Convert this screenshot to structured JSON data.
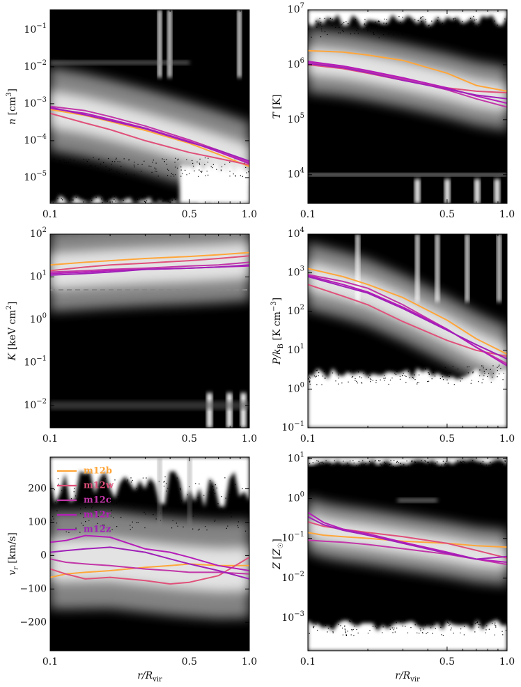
{
  "colors": {
    "m12b": "#ffa63a",
    "m12w": "#e0507a",
    "m12c": "#c236a8",
    "m12r": "#b51db8",
    "m12z": "#a020b8",
    "hist_dark": "#000000",
    "hist_light": "#eeeeee",
    "dashed_line": "#888888"
  },
  "legend": [
    "m12b",
    "m12w",
    "m12c",
    "m12r",
    "m12z"
  ],
  "chart_data": [
    {
      "type": "line",
      "xlabel": "",
      "xscale": "log",
      "xlim": [
        0.1,
        1.0
      ],
      "xticks": [
        "0.1",
        "0.5",
        "1.0"
      ],
      "ylabel": "n [cm3]",
      "yscale": "log",
      "ylim": [
        2e-06,
        0.35
      ],
      "yticks": [
        "10^-5",
        "10^-4",
        "10^-3",
        "10^-2",
        "10^-1"
      ],
      "x": [
        0.1,
        0.15,
        0.2,
        0.3,
        0.5,
        0.7,
        1.0
      ],
      "series": [
        {
          "name": "m12b",
          "values": [
            0.0007,
            0.00048,
            0.00033,
            0.00019,
            8.5e-05,
            4.3e-05,
            2e-05
          ]
        },
        {
          "name": "m12w",
          "values": [
            0.00055,
            0.0003,
            0.0002,
            0.0001,
            4.8e-05,
            3.3e-05,
            2.2e-05
          ]
        },
        {
          "name": "m12c",
          "values": [
            0.00085,
            0.00065,
            0.00045,
            0.00025,
            0.000105,
            5.5e-05,
            2.6e-05
          ]
        },
        {
          "name": "m12r",
          "values": [
            0.00075,
            0.00055,
            0.00038,
            0.00022,
            9.5e-05,
            5e-05,
            2.4e-05
          ]
        },
        {
          "name": "m12z",
          "values": [
            0.0008,
            0.0005,
            0.00035,
            0.00021,
            9e-05,
            5.5e-05,
            2.8e-05
          ]
        }
      ]
    },
    {
      "type": "line",
      "xlabel": "",
      "xscale": "log",
      "xlim": [
        0.1,
        1.0
      ],
      "xticks": [
        "0.1",
        "0.5",
        "1.0"
      ],
      "ylabel": "T [K]",
      "yscale": "log",
      "ylim": [
        3000,
        10000000
      ],
      "yticks": [
        "10^4",
        "10^5",
        "10^6",
        "10^7"
      ],
      "x": [
        0.1,
        0.15,
        0.2,
        0.3,
        0.5,
        0.7,
        1.0
      ],
      "series": [
        {
          "name": "m12b",
          "values": [
            1800000,
            1700000,
            1500000,
            1200000,
            700000,
            420000,
            330000
          ]
        },
        {
          "name": "m12w",
          "values": [
            1000000,
            850000,
            700000,
            520000,
            380000,
            330000,
            310000
          ]
        },
        {
          "name": "m12c",
          "values": [
            1100000,
            900000,
            750000,
            550000,
            350000,
            240000,
            170000
          ]
        },
        {
          "name": "m12r",
          "values": [
            1150000,
            950000,
            780000,
            580000,
            380000,
            270000,
            200000
          ]
        },
        {
          "name": "m12z",
          "values": [
            1050000,
            880000,
            720000,
            520000,
            360000,
            280000,
            240000
          ]
        }
      ]
    },
    {
      "type": "line",
      "xlabel": "",
      "xscale": "log",
      "xlim": [
        0.1,
        1.0
      ],
      "xticks": [
        "0.1",
        "0.5",
        "1.0"
      ],
      "ylabel": "K [keV cm2]",
      "yscale": "log",
      "ylim": [
        0.003,
        100
      ],
      "yticks": [
        "10^-2",
        "10^-1",
        "10^0",
        "10^1",
        "10^2"
      ],
      "reference_line": {
        "value": 5,
        "style": "dashed"
      },
      "x": [
        0.1,
        0.15,
        0.2,
        0.3,
        0.5,
        0.7,
        1.0
      ],
      "series": [
        {
          "name": "m12b",
          "values": [
            19,
            22,
            24,
            27,
            30,
            33,
            37
          ]
        },
        {
          "name": "m12w",
          "values": [
            14,
            17,
            19,
            21,
            24,
            27,
            31
          ]
        },
        {
          "name": "m12c",
          "values": [
            13,
            14,
            15,
            16,
            18,
            19,
            22
          ]
        },
        {
          "name": "m12r",
          "values": [
            12,
            13,
            14,
            15,
            16,
            17,
            18
          ]
        },
        {
          "name": "m12z",
          "values": [
            11,
            12,
            13,
            15,
            16,
            17,
            19
          ]
        }
      ]
    },
    {
      "type": "line",
      "xlabel": "",
      "xscale": "log",
      "xlim": [
        0.1,
        1.0
      ],
      "xticks": [
        "0.1",
        "0.5",
        "1.0"
      ],
      "ylabel": "P/kB [K cm-3]",
      "yscale": "log",
      "ylim": [
        0.1,
        10000
      ],
      "yticks": [
        "10^-1",
        "10^0",
        "10^1",
        "10^2",
        "10^3",
        "10^4"
      ],
      "x": [
        0.1,
        0.15,
        0.2,
        0.3,
        0.5,
        0.7,
        1.0
      ],
      "series": [
        {
          "name": "m12b",
          "values": [
            1300,
            800,
            500,
            230,
            60,
            20,
            8
          ]
        },
        {
          "name": "m12w",
          "values": [
            500,
            250,
            150,
            55,
            18,
            10,
            7
          ]
        },
        {
          "name": "m12c",
          "values": [
            900,
            600,
            400,
            150,
            35,
            12,
            4.5
          ]
        },
        {
          "name": "m12r",
          "values": [
            850,
            500,
            320,
            130,
            35,
            12,
            4
          ]
        },
        {
          "name": "m12z",
          "values": [
            800,
            450,
            300,
            120,
            33,
            14,
            6
          ]
        }
      ]
    },
    {
      "type": "line",
      "xlabel": "r/Rvir",
      "xscale": "log",
      "xlim": [
        0.1,
        1.0
      ],
      "xticks": [
        "0.1",
        "0.5",
        "1.0"
      ],
      "ylabel": "v_r [km/s]",
      "yscale": "linear",
      "ylim": [
        -285,
        295
      ],
      "yticks": [
        "-200",
        "-100",
        "0",
        "100",
        "200"
      ],
      "legend_position": "top-left",
      "x": [
        0.1,
        0.12,
        0.15,
        0.2,
        0.3,
        0.4,
        0.5,
        0.7,
        1.0
      ],
      "series": [
        {
          "name": "m12b",
          "values": [
            -65,
            -55,
            -50,
            -45,
            -35,
            -30,
            -25,
            -30,
            -30
          ]
        },
        {
          "name": "m12w",
          "values": [
            -40,
            -55,
            -70,
            -65,
            -75,
            -85,
            -80,
            -60,
            -5
          ]
        },
        {
          "name": "m12c",
          "values": [
            -10,
            -20,
            -25,
            -30,
            -40,
            -45,
            -50,
            -50,
            -55
          ]
        },
        {
          "name": "m12r",
          "values": [
            40,
            45,
            60,
            55,
            20,
            10,
            -5,
            -30,
            -45
          ]
        },
        {
          "name": "m12z",
          "values": [
            10,
            15,
            20,
            25,
            10,
            -10,
            -25,
            -45,
            -70
          ]
        }
      ]
    },
    {
      "type": "line",
      "xlabel": "r/Rvir",
      "xscale": "log",
      "xlim": [
        0.1,
        1.0
      ],
      "xticks": [
        "0.1",
        "0.5",
        "1.0"
      ],
      "ylabel": "Z [Z☉]",
      "yscale": "log",
      "ylim": [
        0.00015,
        11
      ],
      "yticks": [
        "10^-3",
        "10^-2",
        "10^-1",
        "10^0",
        "10^1"
      ],
      "x": [
        0.1,
        0.12,
        0.15,
        0.2,
        0.3,
        0.5,
        0.7,
        1.0
      ],
      "series": [
        {
          "name": "m12b",
          "values": [
            0.14,
            0.12,
            0.11,
            0.1,
            0.085,
            0.075,
            0.065,
            0.06
          ]
        },
        {
          "name": "m12w",
          "values": [
            0.26,
            0.2,
            0.17,
            0.14,
            0.11,
            0.075,
            0.05,
            0.032
          ]
        },
        {
          "name": "m12c",
          "values": [
            0.09,
            0.085,
            0.08,
            0.07,
            0.055,
            0.04,
            0.03,
            0.022
          ]
        },
        {
          "name": "m12r",
          "values": [
            0.45,
            0.25,
            0.17,
            0.13,
            0.08,
            0.045,
            0.03,
            0.025
          ]
        },
        {
          "name": "m12z",
          "values": [
            0.35,
            0.22,
            0.16,
            0.12,
            0.075,
            0.042,
            0.03,
            0.035
          ]
        }
      ]
    }
  ]
}
